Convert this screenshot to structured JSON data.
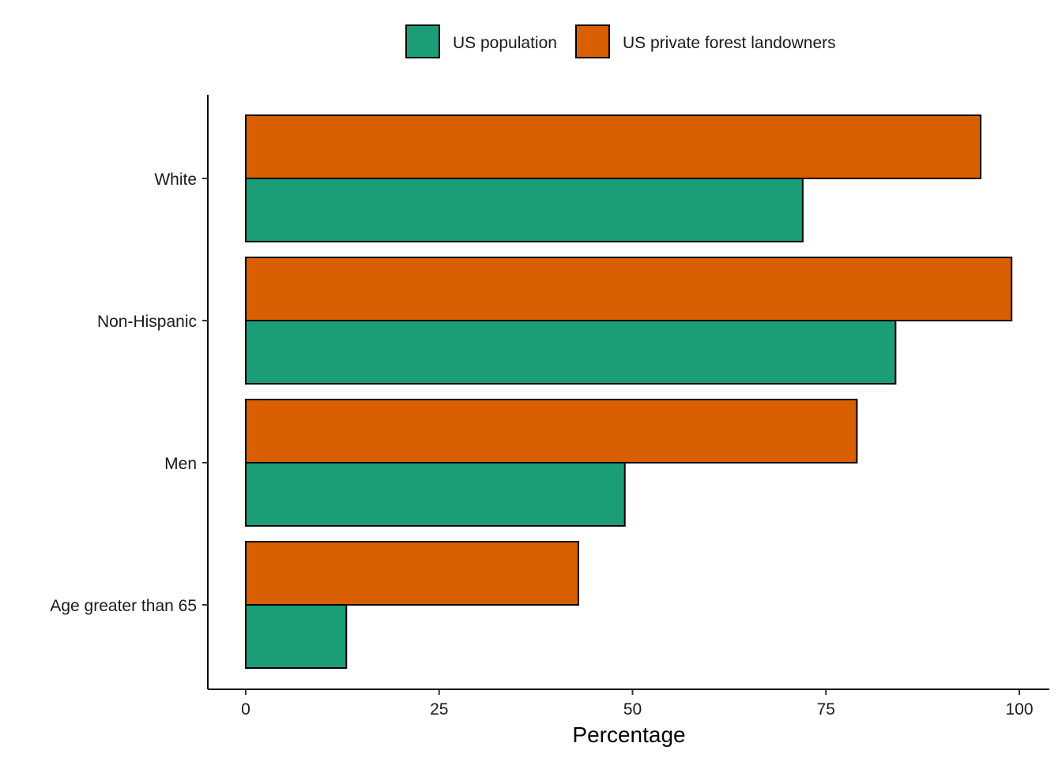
{
  "chart_data": {
    "type": "bar",
    "orientation": "horizontal",
    "title": "",
    "xlabel": "Percentage",
    "ylabel": "",
    "xlim": [
      0,
      100
    ],
    "xticks": [
      0,
      25,
      50,
      75,
      100
    ],
    "categories": [
      "White",
      "Non-Hispanic",
      "Men",
      "Age greater than 65"
    ],
    "series": [
      {
        "name": "US population",
        "color": "#1b9e77",
        "values": [
          72,
          84,
          49,
          13
        ]
      },
      {
        "name": "US private forest landowners",
        "color": "#d95f02",
        "values": [
          95,
          99,
          79,
          43
        ]
      }
    ],
    "legend": {
      "position": "top",
      "entries": [
        "US population",
        "US private forest landowners"
      ]
    },
    "grid": false
  }
}
